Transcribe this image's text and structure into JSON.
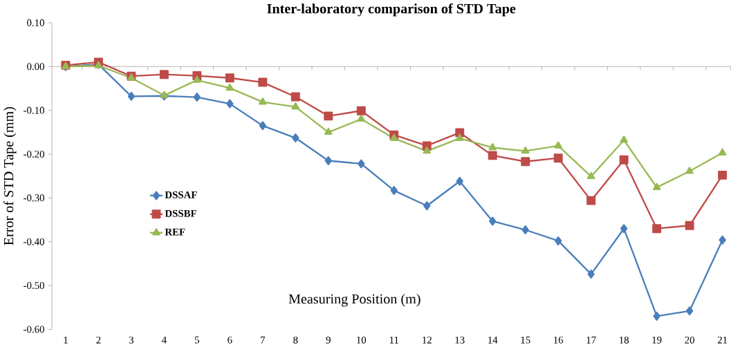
{
  "chart_data": {
    "type": "line",
    "title": "Inter-laboratory comparison of STD Tape",
    "xlabel": "Measuring Position (m)",
    "ylabel": "Error of STD Tape (mm)",
    "categories": [
      "1",
      "2",
      "3",
      "4",
      "5",
      "6",
      "7",
      "8",
      "9",
      "10",
      "11",
      "12",
      "13",
      "14",
      "15",
      "16",
      "17",
      "18",
      "19",
      "20",
      "21"
    ],
    "series": [
      {
        "name": "DSSAF",
        "color": "#4a7ebb",
        "marker": "diamond",
        "values": [
          0.0,
          0.005,
          -0.068,
          -0.067,
          -0.07,
          -0.085,
          -0.135,
          -0.163,
          -0.215,
          -0.222,
          -0.283,
          -0.318,
          -0.262,
          -0.353,
          -0.373,
          -0.398,
          -0.474,
          -0.37,
          -0.57,
          -0.558,
          -0.396
        ]
      },
      {
        "name": "DSSBF",
        "color": "#be4b48",
        "marker": "square",
        "values": [
          0.003,
          0.01,
          -0.022,
          -0.018,
          -0.021,
          -0.026,
          -0.036,
          -0.069,
          -0.113,
          -0.101,
          -0.156,
          -0.181,
          -0.151,
          -0.203,
          -0.217,
          -0.209,
          -0.306,
          -0.213,
          -0.37,
          -0.363,
          -0.248
        ]
      },
      {
        "name": "REF",
        "color": "#98b954",
        "marker": "triangle",
        "values": [
          0.0,
          0.002,
          -0.026,
          -0.066,
          -0.031,
          -0.049,
          -0.081,
          -0.092,
          -0.15,
          -0.12,
          -0.164,
          -0.193,
          -0.164,
          -0.185,
          -0.193,
          -0.181,
          -0.251,
          -0.168,
          -0.276,
          -0.239,
          -0.197
        ]
      }
    ],
    "ylim": [
      -0.6,
      0.1
    ],
    "yticks": [
      {
        "value": 0.1,
        "label": "0.10"
      },
      {
        "value": 0.0,
        "label": "0.00"
      },
      {
        "value": -0.1,
        "label": "-0.10"
      },
      {
        "value": -0.2,
        "label": "-0.20"
      },
      {
        "value": -0.3,
        "label": "-0.30"
      },
      {
        "value": -0.4,
        "label": "-0.40"
      },
      {
        "value": -0.5,
        "label": "-0.50"
      },
      {
        "value": -0.6,
        "label": "-0.60"
      }
    ],
    "legend": "bottom left",
    "line_style": "solid"
  }
}
